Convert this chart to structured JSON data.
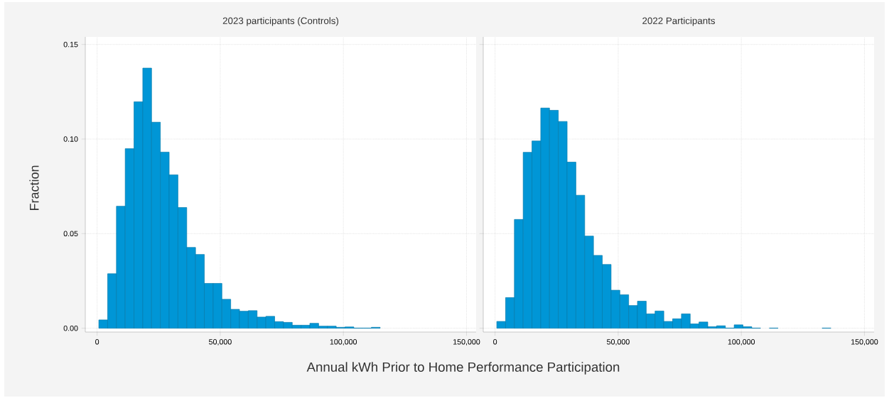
{
  "chart_data": [
    {
      "type": "histogram",
      "title": "2023 participants (Controls)",
      "ylabel": "Fraction",
      "xlabel": "Annual kWh Prior to Home Performance Participation",
      "color": "#0096d6",
      "grid": true,
      "bins": [
        700,
        4270,
        7840,
        11410,
        14980,
        18550,
        22120,
        25690,
        29260,
        32830,
        36400,
        39970,
        43540,
        47110,
        50680,
        54250,
        57820,
        61390,
        64960,
        68530,
        72100,
        75670,
        79240,
        82810,
        86380,
        89950,
        93520,
        97090,
        100660,
        104230,
        107800,
        111370,
        114940
      ],
      "values": [
        0.0044,
        0.0288,
        0.0645,
        0.0949,
        0.1197,
        0.1375,
        0.1089,
        0.0931,
        0.0811,
        0.0638,
        0.0427,
        0.039,
        0.0237,
        0.0237,
        0.0153,
        0.01,
        0.009,
        0.0093,
        0.0059,
        0.0063,
        0.0035,
        0.0031,
        0.0016,
        0.0016,
        0.0026,
        0.0011,
        0.0011,
        0.0005,
        0.0007,
        0.0001,
        0.0001,
        0.0005
      ],
      "xlim": [
        -4800,
        153900
      ],
      "ylim": [
        -0.002,
        0.154
      ],
      "xticks": [
        0,
        {
          "value": 50000,
          "label": "50,000"
        },
        {
          "value": 100000,
          "label": "100,000"
        },
        {
          "value": 150000,
          "label": "150,000"
        }
      ],
      "yticks": [
        {
          "value": 0,
          "label": "0.00"
        },
        {
          "value": 0.05,
          "label": "0.05"
        },
        {
          "value": 0.1,
          "label": "0.10"
        },
        {
          "value": 0.15,
          "label": "0.15"
        }
      ]
    },
    {
      "type": "histogram",
      "title": "2022 Participants",
      "color": "#0096d6",
      "grid": true,
      "tick_labels": "x",
      "bins": [
        700,
        4270,
        7840,
        11410,
        14980,
        18550,
        22120,
        25690,
        29260,
        32830,
        36400,
        39970,
        43540,
        47110,
        50680,
        54250,
        57820,
        61390,
        64960,
        68530,
        72100,
        75670,
        79240,
        82810,
        86380,
        89950,
        93520,
        97090,
        100660,
        104230,
        107800,
        111370,
        114940,
        118510,
        122080,
        125650,
        129220,
        132790,
        136360
      ],
      "values": [
        0.0036,
        0.0162,
        0.0575,
        0.093,
        0.099,
        0.1164,
        0.1152,
        0.1093,
        0.0878,
        0.0703,
        0.0487,
        0.0385,
        0.0337,
        0.0201,
        0.0177,
        0.012,
        0.0143,
        0.0076,
        0.0091,
        0.0036,
        0.005,
        0.0076,
        0.0023,
        0.0033,
        0.0008,
        0.0013,
        0.0001,
        0.0018,
        0.0008,
        0.0001,
        null,
        0.0001,
        null,
        null,
        null,
        null,
        null,
        0.0001
      ],
      "xlim": [
        -4800,
        153900
      ],
      "ylim": [
        -0.002,
        0.154
      ],
      "xticks": [
        0,
        {
          "value": 50000,
          "label": "50,000"
        },
        {
          "value": 100000,
          "label": "100,000"
        },
        {
          "value": 150000,
          "label": "150,000"
        }
      ],
      "yticks": [
        {
          "value": 0,
          "label": null
        },
        {
          "value": 0.05,
          "label": null
        },
        {
          "value": 0.1,
          "label": null
        },
        {
          "value": 0.15,
          "label": null
        }
      ]
    }
  ]
}
